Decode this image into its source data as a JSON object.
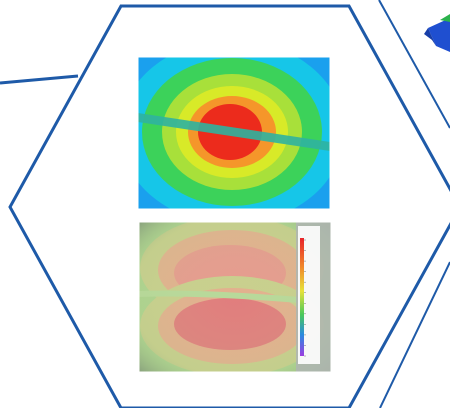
{
  "colors": {
    "frame": "#1e5aa8",
    "corner_shape": "#1f4fd0",
    "corner_accent": "#2bb24c",
    "contour_outer": "#1e6fe0",
    "contour_cyan": "#16c6e8",
    "contour_green": "#3cd25a",
    "contour_yellow": "#d8ea28",
    "contour_orange": "#f5962a",
    "contour_red": "#ec2b1c",
    "strip": "#2fb3a0",
    "photo_base": "#aed38f",
    "photo_pink": "#e79a8e",
    "photo_deep": "#e0747a",
    "photo_grey": "#8f9a92"
  },
  "images": [
    {
      "kind": "simulation-contour-plot"
    },
    {
      "kind": "measured-overlay-photo"
    }
  ],
  "legend": {
    "title": "",
    "values": [
      "",
      "",
      "",
      "",
      "",
      "",
      "",
      "",
      "",
      "",
      "",
      ""
    ]
  }
}
